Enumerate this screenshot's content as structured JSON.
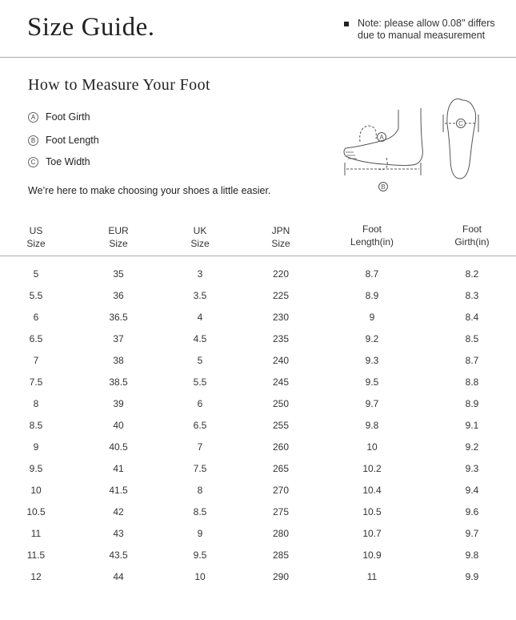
{
  "title": "Size Guide.",
  "note": "Note: please allow 0.08\" differs due to manual measurement",
  "subtitle": "How to Measure Your Foot",
  "measures": [
    {
      "marker": "A",
      "label": "Foot Girth"
    },
    {
      "marker": "B",
      "label": "Foot Length"
    },
    {
      "marker": "C",
      "label": "Toe Width"
    }
  ],
  "intro": "We’re here to make choosing your shoes a little easier.",
  "diagram": {
    "markers": [
      "A",
      "B",
      "C"
    ]
  },
  "table": {
    "headers": [
      [
        "US",
        "Size"
      ],
      [
        "EUR",
        "Size"
      ],
      [
        "UK",
        "Size"
      ],
      [
        "JPN",
        "Size"
      ],
      [
        "Foot",
        "Length(in)"
      ],
      [
        "Foot",
        "Girth(in)"
      ]
    ],
    "rows": [
      [
        "5",
        "35",
        "3",
        "220",
        "8.7",
        "8.2"
      ],
      [
        "5.5",
        "36",
        "3.5",
        "225",
        "8.9",
        "8.3"
      ],
      [
        "6",
        "36.5",
        "4",
        "230",
        "9",
        "8.4"
      ],
      [
        "6.5",
        "37",
        "4.5",
        "235",
        "9.2",
        "8.5"
      ],
      [
        "7",
        "38",
        "5",
        "240",
        "9.3",
        "8.7"
      ],
      [
        "7.5",
        "38.5",
        "5.5",
        "245",
        "9.5",
        "8.8"
      ],
      [
        "8",
        "39",
        "6",
        "250",
        "9.7",
        "8.9"
      ],
      [
        "8.5",
        "40",
        "6.5",
        "255",
        "9.8",
        "9.1"
      ],
      [
        "9",
        "40.5",
        "7",
        "260",
        "10",
        "9.2"
      ],
      [
        "9.5",
        "41",
        "7.5",
        "265",
        "10.2",
        "9.3"
      ],
      [
        "10",
        "41.5",
        "8",
        "270",
        "10.4",
        "9.4"
      ],
      [
        "10.5",
        "42",
        "8.5",
        "275",
        "10.5",
        "9.6"
      ],
      [
        "11",
        "43",
        "9",
        "280",
        "10.7",
        "9.7"
      ],
      [
        "11.5",
        "43.5",
        "9.5",
        "285",
        "10.9",
        "9.8"
      ],
      [
        "12",
        "44",
        "10",
        "290",
        "11",
        "9.9"
      ]
    ]
  }
}
